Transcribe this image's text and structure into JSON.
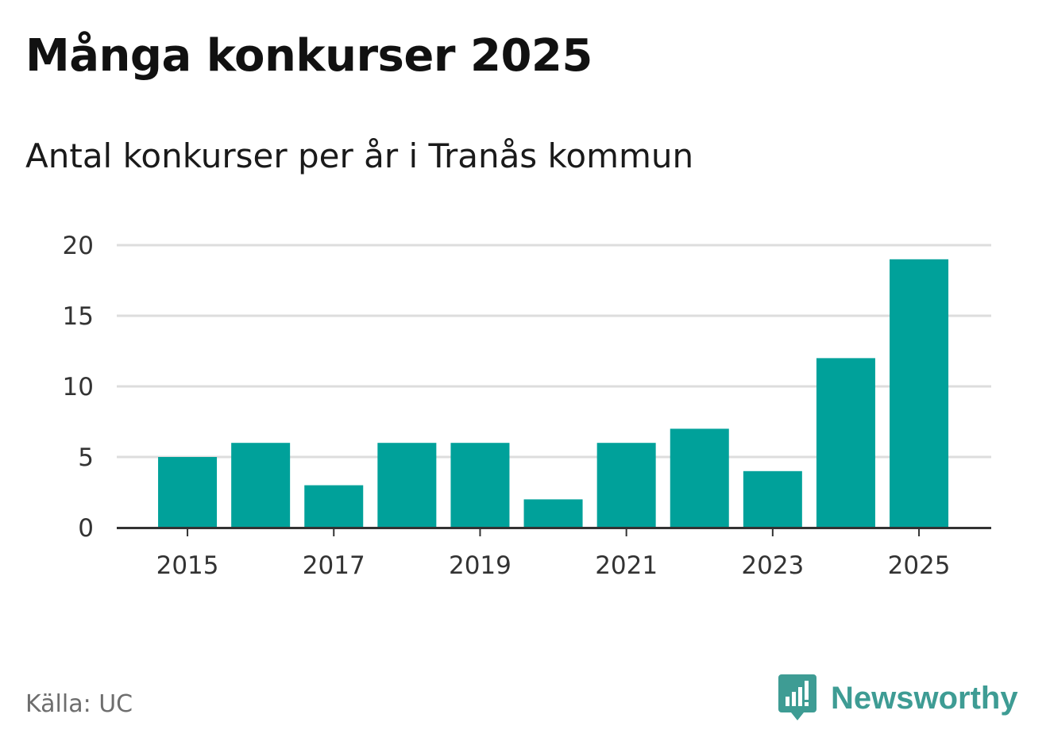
{
  "header": {
    "title": "Många konkurser 2025",
    "subtitle": "Antal konkurser per år i Tranås kommun"
  },
  "footer": {
    "source": "Källa: UC",
    "brand": "Newsworthy",
    "brand_icon": "bar-chart-speech-bubble-icon"
  },
  "colors": {
    "bar": "#00a19a",
    "gridline": "#dddddd",
    "axis": "#333333",
    "brand": "#3e9c94"
  },
  "chart_data": {
    "type": "bar",
    "title": "Många konkurser 2025",
    "subtitle": "Antal konkurser per år i Tranås kommun",
    "xlabel": "",
    "ylabel": "",
    "categories": [
      "2015",
      "2016",
      "2017",
      "2018",
      "2019",
      "2020",
      "2021",
      "2022",
      "2023",
      "2024",
      "2025"
    ],
    "values": [
      5,
      6,
      3,
      6,
      6,
      2,
      6,
      7,
      4,
      12,
      19
    ],
    "x_tick_labels": [
      "2015",
      "2017",
      "2019",
      "2021",
      "2023",
      "2025"
    ],
    "y_ticks": [
      0,
      5,
      10,
      15,
      20
    ],
    "ylim": [
      0,
      20
    ],
    "grid": true,
    "legend": "none"
  }
}
